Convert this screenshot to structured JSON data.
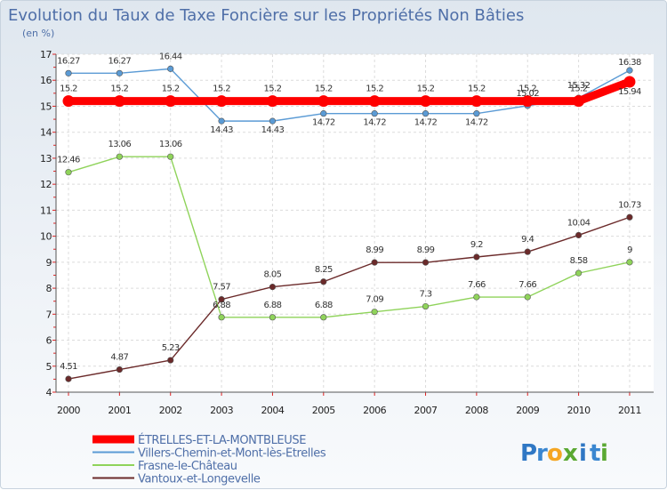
{
  "chart_data": {
    "type": "line",
    "title": "Evolution du Taux de Taxe Foncière sur les Propriétés Non Bâties",
    "ylabel": "(en %)",
    "xlabel": "",
    "categories": [
      "2000",
      "2001",
      "2002",
      "2003",
      "2004",
      "2005",
      "2006",
      "2007",
      "2008",
      "2009",
      "2010",
      "2011"
    ],
    "ylim": [
      4,
      17
    ],
    "yticks": [
      4,
      5,
      6,
      7,
      8,
      9,
      10,
      11,
      12,
      13,
      14,
      15,
      16,
      17
    ],
    "series": [
      {
        "name": "ÉTRELLES-ET-LA-MONTBLEUSE",
        "color": "#ff0000",
        "values": [
          15.2,
          15.2,
          15.2,
          15.2,
          15.2,
          15.2,
          15.2,
          15.2,
          15.2,
          15.2,
          15.2,
          15.94
        ],
        "labels": [
          "15.2",
          "15.2",
          "15.2",
          "15.2",
          "15.2",
          "15.2",
          "15.2",
          "15.2",
          "15.2",
          "15.2",
          "15.2",
          "15.94"
        ]
      },
      {
        "name": "Villers-Chemin-et-Mont-lès-Etrelles",
        "color": "#5b9bd5",
        "values": [
          16.27,
          16.27,
          16.44,
          14.43,
          14.43,
          14.72,
          14.72,
          14.72,
          14.72,
          15.02,
          15.32,
          16.38
        ],
        "labels": [
          "16.27",
          "16.27",
          "16.44",
          "14.43",
          "14.43",
          "14.72",
          "14.72",
          "14.72",
          "14.72",
          "15.02",
          "15.32",
          "16.38"
        ]
      },
      {
        "name": "Frasne-le-Château",
        "color": "#8fd35a",
        "values": [
          12.46,
          13.06,
          13.06,
          6.88,
          6.88,
          6.88,
          7.09,
          7.3,
          7.66,
          7.66,
          8.58,
          9
        ],
        "labels": [
          "12.46",
          "13.06",
          "13.06",
          "6.88",
          "6.88",
          "6.88",
          "7.09",
          "7.3",
          "7.66",
          "7.66",
          "8.58",
          "9"
        ]
      },
      {
        "name": "Vantoux-et-Longevelle",
        "color": "#6b2a2a",
        "values": [
          4.51,
          4.87,
          5.23,
          7.57,
          8.05,
          8.25,
          8.99,
          8.99,
          9.2,
          9.4,
          10.04,
          10.73
        ],
        "labels": [
          "4.51",
          "4.87",
          "5.23",
          "7.57",
          "8.05",
          "8.25",
          "8.99",
          "8.99",
          "9.2",
          "9.4",
          "10.04",
          "10.73"
        ]
      }
    ],
    "legend_position": "bottom-left"
  },
  "brand": {
    "letters": [
      "P",
      "r",
      "o",
      "x",
      "i",
      "t",
      "i"
    ],
    "colors": [
      "#2f77c4",
      "#3a86d0",
      "#f5a623",
      "#5aa832",
      "#2f77c4",
      "#3a86d0",
      "#5aa832"
    ]
  }
}
